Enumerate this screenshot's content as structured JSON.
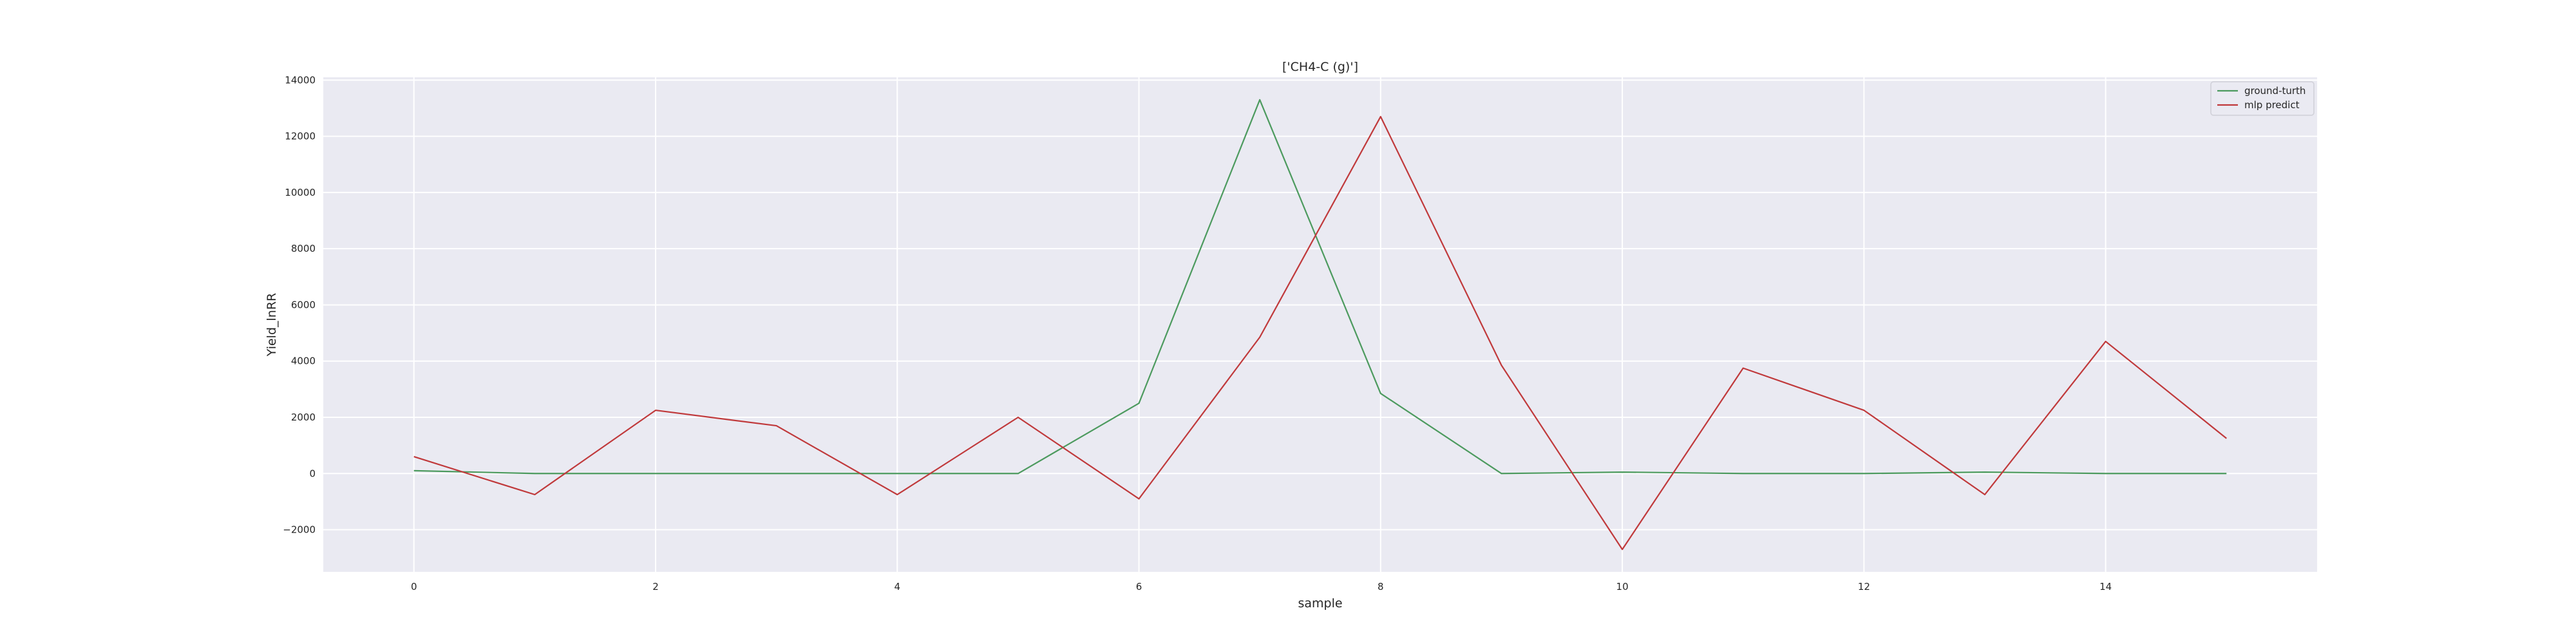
{
  "chart_data": {
    "type": "line",
    "title": "['CH4-C (g)']",
    "xlabel": "sample",
    "ylabel": "Yield_lnRR",
    "x": [
      0,
      1,
      2,
      3,
      4,
      5,
      6,
      7,
      8,
      9,
      10,
      11,
      12,
      13,
      14,
      15
    ],
    "xlim": [
      -0.75,
      15.75
    ],
    "ylim": [
      -3500,
      14100
    ],
    "x_ticks": [
      0,
      2,
      4,
      6,
      8,
      10,
      12,
      14
    ],
    "y_ticks": [
      -2000,
      0,
      2000,
      4000,
      6000,
      8000,
      10000,
      12000,
      14000
    ],
    "x_tick_labels": [
      "0",
      "2",
      "4",
      "6",
      "8",
      "10",
      "12",
      "14"
    ],
    "y_tick_labels": [
      "−2000",
      "0",
      "2000",
      "4000",
      "6000",
      "8000",
      "10000",
      "12000",
      "14000"
    ],
    "grid": true,
    "legend_position": "top-right",
    "background": "#eaeaf2",
    "series": [
      {
        "name": "ground-turth",
        "color": "#4c9a5e",
        "values": [
          100,
          0,
          0,
          0,
          0,
          0,
          2500,
          13300,
          2850,
          0,
          50,
          0,
          0,
          50,
          0,
          0
        ]
      },
      {
        "name": "mlp predict",
        "color": "#c0393b",
        "values": [
          600,
          -750,
          2250,
          1700,
          -750,
          2000,
          -900,
          4850,
          12700,
          3850,
          -2700,
          3750,
          2250,
          -750,
          4700,
          1250
        ]
      }
    ]
  }
}
